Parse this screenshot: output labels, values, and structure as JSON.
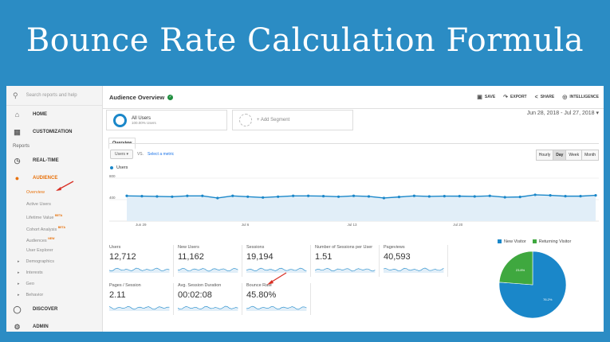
{
  "banner": {
    "title": "Bounce Rate Calculation Formula"
  },
  "sidebar": {
    "search_placeholder": "Search reports and help",
    "home": "HOME",
    "customization": "CUSTOMIZATION",
    "reports_heading": "Reports",
    "realtime": "REAL-TIME",
    "audience": "AUDIENCE",
    "audience_items": [
      {
        "label": "Overview",
        "badge": ""
      },
      {
        "label": "Active Users",
        "badge": ""
      },
      {
        "label": "Lifetime Value",
        "badge": "BETA"
      },
      {
        "label": "Cohort Analysis",
        "badge": "BETA"
      },
      {
        "label": "Audiences",
        "badge": "NEW"
      },
      {
        "label": "User Explorer",
        "badge": ""
      }
    ],
    "expandables": [
      "Demographics",
      "Interests",
      "Geo",
      "Behavior"
    ],
    "discover": "DISCOVER",
    "admin": "ADMIN"
  },
  "header": {
    "title": "Audience Overview",
    "actions": {
      "save": "SAVE",
      "export": "EXPORT",
      "share": "SHARE",
      "intelligence": "INTELLIGENCE"
    }
  },
  "segments": {
    "all_users": "All Users",
    "all_users_sub": "100.00% Users",
    "add_segment": "+ Add Segment"
  },
  "date_range": "Jun 28, 2018 - Jul 27, 2018",
  "tabs": {
    "overview": "Overview"
  },
  "controls": {
    "metric": "Users",
    "vs": "VS.",
    "select_metric": "Select a metric",
    "granularity": [
      "Hourly",
      "Day",
      "Week",
      "Month"
    ],
    "active_granularity": "Day"
  },
  "chart_data": {
    "type": "line",
    "series": [
      {
        "name": "Users",
        "values": [
          470,
          465,
          460,
          455,
          470,
          470,
          430,
          470,
          455,
          440,
          455,
          470,
          470,
          465,
          455,
          470,
          460,
          430,
          450,
          470,
          460,
          465,
          465,
          460,
          470,
          445,
          450,
          490,
          480,
          465,
          465,
          480
        ]
      }
    ],
    "y_ticks": [
      "800",
      "400"
    ],
    "ylim": [
      0,
      800
    ],
    "x_tick_labels": [
      "Jun 29",
      "Jul 6",
      "Jul 13",
      "Jul 20"
    ],
    "color": "#1a87c9"
  },
  "metrics": [
    {
      "label": "Users",
      "value": "12,712"
    },
    {
      "label": "New Users",
      "value": "11,162"
    },
    {
      "label": "Sessions",
      "value": "19,194"
    },
    {
      "label": "Number of Sessions per User",
      "value": "1.51"
    },
    {
      "label": "Pageviews",
      "value": "40,593"
    },
    {
      "label": "Pages / Session",
      "value": "2.11"
    },
    {
      "label": "Avg. Session Duration",
      "value": "00:02:08"
    },
    {
      "label": "Bounce Rate",
      "value": "45.80%"
    }
  ],
  "pie_data": {
    "type": "pie",
    "slices": [
      {
        "label": "New Visitor",
        "value": 76.2,
        "display": "76.2%",
        "color": "#1a87c9"
      },
      {
        "label": "Returning Visitor",
        "value": 23.8,
        "display": "23.8%",
        "color": "#3fa83f"
      }
    ]
  },
  "colors": {
    "accent": "#e8710a",
    "brand_blue": "#1a87c9",
    "annotation_arrow": "#d93025"
  }
}
